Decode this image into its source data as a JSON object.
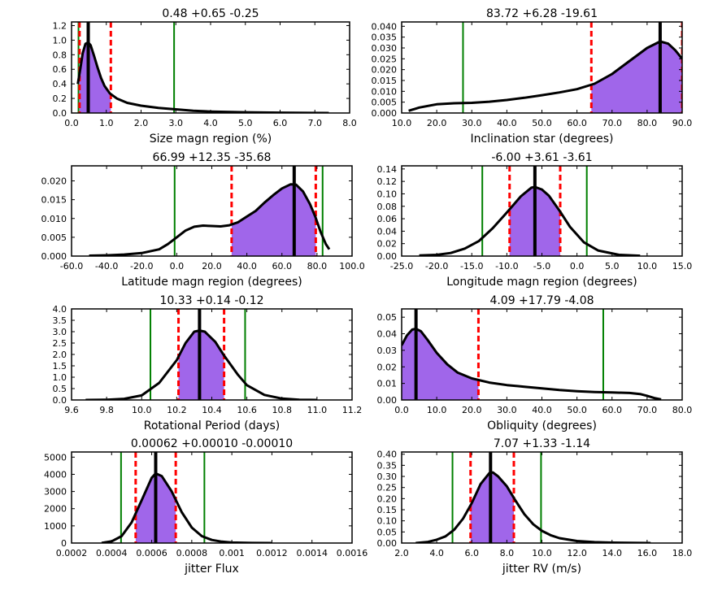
{
  "colors": {
    "fill": "#a066ea",
    "curve": "#000000",
    "median": "#000000",
    "inner_limits": "#ff0000",
    "outer_limits": "#007f00"
  },
  "chart_data": [
    {
      "type": "area",
      "title": "0.48 +0.65 -0.25",
      "xlabel": "Size magn region (%)",
      "xlim": [
        0,
        8
      ],
      "ylim": [
        0,
        1.25
      ],
      "xticks": [
        0,
        1,
        2,
        3,
        4,
        5,
        6,
        7,
        8
      ],
      "xticklabels": [
        "0.0",
        "1.0",
        "2.0",
        "3.0",
        "4.0",
        "5.0",
        "6.0",
        "7.0",
        "8.0"
      ],
      "yticks": [
        0,
        0.2,
        0.4,
        0.6,
        0.8,
        1.0,
        1.2
      ],
      "yticklabels": [
        "0.0",
        "0.2",
        "0.4",
        "0.6",
        "0.8",
        "1.0",
        "1.2"
      ],
      "curve": [
        [
          0.18,
          0.4
        ],
        [
          0.25,
          0.6
        ],
        [
          0.32,
          0.82
        ],
        [
          0.4,
          0.95
        ],
        [
          0.48,
          0.97
        ],
        [
          0.55,
          0.93
        ],
        [
          0.65,
          0.78
        ],
        [
          0.75,
          0.62
        ],
        [
          0.85,
          0.48
        ],
        [
          0.95,
          0.37
        ],
        [
          1.1,
          0.27
        ],
        [
          1.3,
          0.2
        ],
        [
          1.6,
          0.14
        ],
        [
          2.0,
          0.1
        ],
        [
          2.5,
          0.07
        ],
        [
          3.0,
          0.05
        ],
        [
          3.5,
          0.03
        ],
        [
          4.0,
          0.02
        ],
        [
          5.0,
          0.01
        ],
        [
          6.0,
          0.005
        ],
        [
          7.4,
          0.0
        ]
      ],
      "shade": [
        0.23,
        1.13
      ],
      "median": 0.48,
      "inner": [
        0.23,
        1.13
      ],
      "outer": [
        0.2,
        2.95
      ]
    },
    {
      "type": "area",
      "title": "83.72 +6.28 -19.61",
      "xlabel": "Inclination star (degrees)",
      "xlim": [
        10,
        90
      ],
      "ylim": [
        0,
        0.042
      ],
      "xticks": [
        10,
        20,
        30,
        40,
        50,
        60,
        70,
        80,
        90
      ],
      "xticklabels": [
        "10.0",
        "20.0",
        "30.0",
        "40.0",
        "50.0",
        "60.0",
        "70.0",
        "80.0",
        "90.0"
      ],
      "yticks": [
        0,
        0.005,
        0.01,
        0.015,
        0.02,
        0.025,
        0.03,
        0.035,
        0.04
      ],
      "yticklabels": [
        "0.000",
        "0.005",
        "0.010",
        "0.015",
        "0.020",
        "0.025",
        "0.030",
        "0.035",
        "0.040"
      ],
      "curve": [
        [
          12,
          0.001
        ],
        [
          15,
          0.0025
        ],
        [
          20,
          0.004
        ],
        [
          25,
          0.0045
        ],
        [
          30,
          0.0047
        ],
        [
          35,
          0.0052
        ],
        [
          40,
          0.006
        ],
        [
          45,
          0.007
        ],
        [
          50,
          0.0082
        ],
        [
          55,
          0.0095
        ],
        [
          60,
          0.011
        ],
        [
          65,
          0.0135
        ],
        [
          70,
          0.018
        ],
        [
          75,
          0.024
        ],
        [
          80,
          0.03
        ],
        [
          83.72,
          0.033
        ],
        [
          86,
          0.032
        ],
        [
          88,
          0.029
        ],
        [
          90,
          0.025
        ]
      ],
      "shade": [
        64.1,
        90
      ],
      "median": 83.72,
      "inner": [
        64.1,
        90
      ],
      "outer": [
        27.5
      ]
    },
    {
      "type": "area",
      "title": "66.99 +12.35 -35.68",
      "xlabel": "Latitude magn region (degrees)",
      "xlim": [
        -60,
        100
      ],
      "ylim": [
        0,
        0.024
      ],
      "xticks": [
        -60,
        -40,
        -20,
        0,
        20,
        40,
        60,
        80,
        100
      ],
      "xticklabels": [
        "-60.0",
        "-40.0",
        "-20.0",
        "0.0",
        "20.0",
        "40.0",
        "60.0",
        "80.0",
        "100.0"
      ],
      "yticks": [
        0,
        0.005,
        0.01,
        0.015,
        0.02
      ],
      "yticklabels": [
        "0.000",
        "0.005",
        "0.010",
        "0.015",
        "0.020"
      ],
      "curve": [
        [
          -50,
          0.0001
        ],
        [
          -40,
          0.0002
        ],
        [
          -30,
          0.0004
        ],
        [
          -20,
          0.0008
        ],
        [
          -10,
          0.0018
        ],
        [
          -5,
          0.0032
        ],
        [
          0,
          0.005
        ],
        [
          5,
          0.0068
        ],
        [
          10,
          0.0078
        ],
        [
          15,
          0.0081
        ],
        [
          20,
          0.008
        ],
        [
          25,
          0.0079
        ],
        [
          30,
          0.0082
        ],
        [
          35,
          0.009
        ],
        [
          40,
          0.0105
        ],
        [
          45,
          0.012
        ],
        [
          50,
          0.0142
        ],
        [
          55,
          0.0162
        ],
        [
          60,
          0.018
        ],
        [
          65,
          0.0191
        ],
        [
          68,
          0.019
        ],
        [
          72,
          0.0172
        ],
        [
          76,
          0.0138
        ],
        [
          79,
          0.0105
        ],
        [
          82,
          0.0065
        ],
        [
          85,
          0.0032
        ],
        [
          87,
          0.0018
        ]
      ],
      "shade": [
        31.3,
        79.3
      ],
      "median": 66.99,
      "inner": [
        31.3,
        79.3
      ],
      "outer": [
        -1.2,
        83.2
      ]
    },
    {
      "type": "area",
      "title": "-6.00 +3.61 -3.61",
      "xlabel": "Longitude magn region (degrees)",
      "xlim": [
        -25,
        15
      ],
      "ylim": [
        0,
        0.145
      ],
      "xticks": [
        -25,
        -20,
        -15,
        -10,
        -5,
        0,
        5,
        10,
        15
      ],
      "xticklabels": [
        "-25.0",
        "-20.0",
        "-15.0",
        "-10.0",
        "-5.0",
        "0.0",
        "5.0",
        "10.0",
        "15.0"
      ],
      "yticks": [
        0,
        0.02,
        0.04,
        0.06,
        0.08,
        0.1,
        0.12,
        0.14
      ],
      "yticklabels": [
        "0.00",
        "0.02",
        "0.04",
        "0.06",
        "0.08",
        "0.10",
        "0.12",
        "0.14"
      ],
      "curve": [
        [
          -22.5,
          0.001
        ],
        [
          -20,
          0.002
        ],
        [
          -18,
          0.005
        ],
        [
          -16,
          0.012
        ],
        [
          -14,
          0.024
        ],
        [
          -12,
          0.045
        ],
        [
          -10,
          0.07
        ],
        [
          -8,
          0.096
        ],
        [
          -6.5,
          0.11
        ],
        [
          -6,
          0.111
        ],
        [
          -5,
          0.107
        ],
        [
          -4,
          0.097
        ],
        [
          -2.5,
          0.073
        ],
        [
          -1,
          0.047
        ],
        [
          1,
          0.022
        ],
        [
          3,
          0.009
        ],
        [
          6,
          0.002
        ],
        [
          9,
          0.0005
        ]
      ],
      "shade": [
        -9.61,
        -2.39
      ],
      "median": -6.0,
      "inner": [
        -9.61,
        -2.39
      ],
      "outer": [
        -13.5,
        1.4
      ]
    },
    {
      "type": "area",
      "title": "10.33 +0.14 -0.12",
      "xlabel": "Rotational Period (days)",
      "xlim": [
        9.6,
        11.2
      ],
      "ylim": [
        0,
        4.0
      ],
      "xticks": [
        9.6,
        9.8,
        10.0,
        10.2,
        10.4,
        10.6,
        10.8,
        11.0,
        11.2
      ],
      "xticklabels": [
        "9.6",
        "9.8",
        "10.0",
        "10.2",
        "10.4",
        "10.6",
        "10.8",
        "11.0",
        "11.2"
      ],
      "yticks": [
        0,
        0.5,
        1.0,
        1.5,
        2.0,
        2.5,
        3.0,
        3.5,
        4.0
      ],
      "yticklabels": [
        "0.0",
        "0.5",
        "1.0",
        "1.5",
        "2.0",
        "2.5",
        "3.0",
        "3.5",
        "4.0"
      ],
      "curve": [
        [
          9.68,
          0.0
        ],
        [
          9.8,
          0.01
        ],
        [
          9.9,
          0.05
        ],
        [
          10.0,
          0.2
        ],
        [
          10.1,
          0.75
        ],
        [
          10.2,
          1.75
        ],
        [
          10.25,
          2.5
        ],
        [
          10.3,
          3.0
        ],
        [
          10.33,
          3.05
        ],
        [
          10.36,
          3.0
        ],
        [
          10.42,
          2.55
        ],
        [
          10.47,
          1.95
        ],
        [
          10.55,
          1.1
        ],
        [
          10.6,
          0.65
        ],
        [
          10.7,
          0.22
        ],
        [
          10.8,
          0.06
        ],
        [
          10.9,
          0.01
        ],
        [
          11.0,
          0.0
        ]
      ],
      "shade": [
        10.21,
        10.47
      ],
      "median": 10.33,
      "inner": [
        10.21,
        10.47
      ],
      "outer": [
        10.05,
        10.59
      ]
    },
    {
      "type": "area",
      "title": "4.09 +17.79 -4.08",
      "xlabel": "Obliquity (degrees)",
      "xlim": [
        0,
        80
      ],
      "ylim": [
        0,
        0.055
      ],
      "xticks": [
        0,
        10,
        20,
        30,
        40,
        50,
        60,
        70,
        80
      ],
      "xticklabels": [
        "0.0",
        "10.0",
        "20.0",
        "30.0",
        "40.0",
        "50.0",
        "60.0",
        "70.0",
        "80.0"
      ],
      "yticks": [
        0,
        0.01,
        0.02,
        0.03,
        0.04,
        0.05
      ],
      "yticklabels": [
        "0.00",
        "0.01",
        "0.02",
        "0.03",
        "0.04",
        "0.05"
      ],
      "curve": [
        [
          0,
          0.033
        ],
        [
          1.5,
          0.039
        ],
        [
          3,
          0.0425
        ],
        [
          4,
          0.043
        ],
        [
          5.5,
          0.0415
        ],
        [
          7.5,
          0.036
        ],
        [
          10,
          0.0285
        ],
        [
          13,
          0.0215
        ],
        [
          16,
          0.0165
        ],
        [
          20,
          0.013
        ],
        [
          25,
          0.0105
        ],
        [
          30,
          0.009
        ],
        [
          35,
          0.008
        ],
        [
          40,
          0.007
        ],
        [
          45,
          0.006
        ],
        [
          50,
          0.0053
        ],
        [
          55,
          0.0048
        ],
        [
          60,
          0.0045
        ],
        [
          65,
          0.0042
        ],
        [
          68,
          0.0036
        ],
        [
          70,
          0.0025
        ],
        [
          72,
          0.0012
        ],
        [
          74,
          0.0003
        ]
      ],
      "shade": [
        0,
        21.9
      ],
      "median": 4.09,
      "inner": [
        21.9
      ],
      "outer": [
        57.5
      ]
    },
    {
      "type": "area",
      "title": "0.00062 +0.00010 -0.00010",
      "xlabel": "jitter Flux",
      "xlim": [
        0.0002,
        0.0016
      ],
      "ylim": [
        0,
        5300
      ],
      "xticks": [
        0.0002,
        0.0004,
        0.0006,
        0.0008,
        0.001,
        0.0012,
        0.0014,
        0.0016
      ],
      "xticklabels": [
        "0.0002",
        "0.0004",
        "0.0006",
        "0.0008",
        "0.001",
        "0.0012",
        "0.0014",
        "0.0016"
      ],
      "yticks": [
        0,
        1000,
        2000,
        3000,
        4000,
        5000
      ],
      "yticklabels": [
        "0",
        "1000",
        "2000",
        "3000",
        "4000",
        "5000"
      ],
      "curve": [
        [
          0.00035,
          10
        ],
        [
          0.0004,
          100
        ],
        [
          0.00045,
          400
        ],
        [
          0.0005,
          1200
        ],
        [
          0.00055,
          2500
        ],
        [
          0.0006,
          3800
        ],
        [
          0.00062,
          4050
        ],
        [
          0.00065,
          3900
        ],
        [
          0.0007,
          3000
        ],
        [
          0.00075,
          1800
        ],
        [
          0.0008,
          900
        ],
        [
          0.00085,
          400
        ],
        [
          0.0009,
          180
        ],
        [
          0.00095,
          80
        ],
        [
          0.001,
          30
        ],
        [
          0.0011,
          5
        ],
        [
          0.0012,
          0
        ]
      ],
      "shade": [
        0.00052,
        0.00072
      ],
      "median": 0.00062,
      "inner": [
        0.00052,
        0.00072
      ],
      "outer": [
        0.000447,
        0.000863
      ]
    },
    {
      "type": "area",
      "title": "7.07 +1.33 -1.14",
      "xlabel": "jitter RV (m/s)",
      "xlim": [
        2,
        18
      ],
      "ylim": [
        0,
        0.41
      ],
      "xticks": [
        2,
        4,
        6,
        8,
        10,
        12,
        14,
        16,
        18
      ],
      "xticklabels": [
        "2.0",
        "4.0",
        "6.0",
        "8.0",
        "10.0",
        "12.0",
        "14.0",
        "16.0",
        "18.0"
      ],
      "yticks": [
        0,
        0.05,
        0.1,
        0.15,
        0.2,
        0.25,
        0.3,
        0.35,
        0.4
      ],
      "yticklabels": [
        "0.00",
        "0.05",
        "0.10",
        "0.15",
        "0.20",
        "0.25",
        "0.30",
        "0.35",
        "0.40"
      ],
      "curve": [
        [
          2.8,
          0.0
        ],
        [
          3.5,
          0.005
        ],
        [
          4.0,
          0.015
        ],
        [
          4.5,
          0.03
        ],
        [
          5.0,
          0.06
        ],
        [
          5.5,
          0.11
        ],
        [
          6.0,
          0.18
        ],
        [
          6.5,
          0.265
        ],
        [
          7.0,
          0.315
        ],
        [
          7.2,
          0.318
        ],
        [
          7.5,
          0.3
        ],
        [
          8.0,
          0.255
        ],
        [
          8.5,
          0.19
        ],
        [
          9.0,
          0.13
        ],
        [
          9.5,
          0.085
        ],
        [
          10.0,
          0.055
        ],
        [
          10.5,
          0.035
        ],
        [
          11.0,
          0.022
        ],
        [
          12.0,
          0.009
        ],
        [
          13.0,
          0.004
        ],
        [
          14.0,
          0.002
        ],
        [
          15.0,
          0.001
        ],
        [
          16.2,
          0.0
        ]
      ],
      "shade": [
        5.93,
        8.4
      ],
      "median": 7.07,
      "inner": [
        5.93,
        8.4
      ],
      "outer": [
        4.9,
        9.95
      ]
    }
  ]
}
